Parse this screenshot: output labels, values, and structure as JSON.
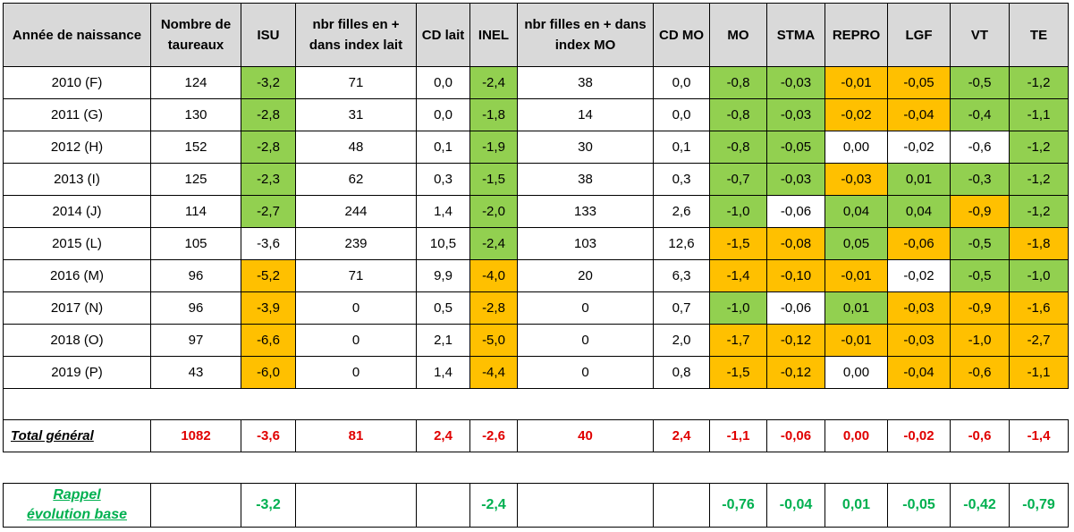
{
  "headers": [
    "Année de naissance",
    "Nombre de taureaux",
    "ISU",
    "nbr filles en + dans index lait",
    "CD lait",
    "INEL",
    "nbr filles en + dans index MO",
    "CD MO",
    "MO",
    "STMA",
    "REPRO",
    "LGF",
    "VT",
    "TE"
  ],
  "colors": {
    "green": "#92d050",
    "orange": "#ffc000",
    "header": "#d9d9d9",
    "total_red": "#e00000",
    "rappel_green": "#00b050"
  },
  "rows": [
    {
      "cells": [
        "2010 (F)",
        "124",
        "-3,2",
        "71",
        "0,0",
        "-2,4",
        "38",
        "0,0",
        "-0,8",
        "-0,03",
        "-0,01",
        "-0,05",
        "-0,5",
        "-1,2"
      ],
      "fill": [
        "",
        "",
        "g",
        "",
        "",
        "g",
        "",
        "",
        "g",
        "g",
        "o",
        "o",
        "g",
        "g"
      ]
    },
    {
      "cells": [
        "2011 (G)",
        "130",
        "-2,8",
        "31",
        "0,0",
        "-1,8",
        "14",
        "0,0",
        "-0,8",
        "-0,03",
        "-0,02",
        "-0,04",
        "-0,4",
        "-1,1"
      ],
      "fill": [
        "",
        "",
        "g",
        "",
        "",
        "g",
        "",
        "",
        "g",
        "g",
        "o",
        "o",
        "g",
        "g"
      ]
    },
    {
      "cells": [
        "2012 (H)",
        "152",
        "-2,8",
        "48",
        "0,1",
        "-1,9",
        "30",
        "0,1",
        "-0,8",
        "-0,05",
        "0,00",
        "-0,02",
        "-0,6",
        "-1,2"
      ],
      "fill": [
        "",
        "",
        "g",
        "",
        "",
        "g",
        "",
        "",
        "g",
        "g",
        "",
        "",
        "",
        "g"
      ]
    },
    {
      "cells": [
        "2013 (I)",
        "125",
        "-2,3",
        "62",
        "0,3",
        "-1,5",
        "38",
        "0,3",
        "-0,7",
        "-0,03",
        "-0,03",
        "0,01",
        "-0,3",
        "-1,2"
      ],
      "fill": [
        "",
        "",
        "g",
        "",
        "",
        "g",
        "",
        "",
        "g",
        "g",
        "o",
        "g",
        "g",
        "g"
      ]
    },
    {
      "cells": [
        "2014 (J)",
        "114",
        "-2,7",
        "244",
        "1,4",
        "-2,0",
        "133",
        "2,6",
        "-1,0",
        "-0,06",
        "0,04",
        "0,04",
        "-0,9",
        "-1,2"
      ],
      "fill": [
        "",
        "",
        "g",
        "",
        "",
        "g",
        "",
        "",
        "g",
        "",
        "g",
        "g",
        "o",
        "g"
      ]
    },
    {
      "cells": [
        "2015 (L)",
        "105",
        "-3,6",
        "239",
        "10,5",
        "-2,4",
        "103",
        "12,6",
        "-1,5",
        "-0,08",
        "0,05",
        "-0,06",
        "-0,5",
        "-1,8"
      ],
      "fill": [
        "",
        "",
        "",
        "",
        "",
        "g",
        "",
        "",
        "o",
        "o",
        "g",
        "o",
        "g",
        "o"
      ]
    },
    {
      "cells": [
        "2016 (M)",
        "96",
        "-5,2",
        "71",
        "9,9",
        "-4,0",
        "20",
        "6,3",
        "-1,4",
        "-0,10",
        "-0,01",
        "-0,02",
        "-0,5",
        "-1,0"
      ],
      "fill": [
        "",
        "",
        "o",
        "",
        "",
        "o",
        "",
        "",
        "o",
        "o",
        "o",
        "",
        "g",
        "g"
      ]
    },
    {
      "cells": [
        "2017 (N)",
        "96",
        "-3,9",
        "0",
        "0,5",
        "-2,8",
        "0",
        "0,7",
        "-1,0",
        "-0,06",
        "0,01",
        "-0,03",
        "-0,9",
        "-1,6"
      ],
      "fill": [
        "",
        "",
        "o",
        "",
        "",
        "o",
        "",
        "",
        "g",
        "",
        "g",
        "o",
        "o",
        "o"
      ]
    },
    {
      "cells": [
        "2018 (O)",
        "97",
        "-6,6",
        "0",
        "2,1",
        "-5,0",
        "0",
        "2,0",
        "-1,7",
        "-0,12",
        "-0,01",
        "-0,03",
        "-1,0",
        "-2,7"
      ],
      "fill": [
        "",
        "",
        "o",
        "",
        "",
        "o",
        "",
        "",
        "o",
        "o",
        "o",
        "o",
        "o",
        "o"
      ]
    },
    {
      "cells": [
        "2019 (P)",
        "43",
        "-6,0",
        "0",
        "1,4",
        "-4,4",
        "0",
        "0,8",
        "-1,5",
        "-0,12",
        "0,00",
        "-0,04",
        "-0,6",
        "-1,1"
      ],
      "fill": [
        "",
        "",
        "o",
        "",
        "",
        "o",
        "",
        "",
        "o",
        "o",
        "",
        "o",
        "o",
        "o"
      ]
    }
  ],
  "total": {
    "label": "Total général",
    "cells": [
      "1082",
      "-3,6",
      "81",
      "2,4",
      "-2,6",
      "40",
      "2,4",
      "-1,1",
      "-0,06",
      "0,00",
      "-0,02",
      "-0,6",
      "-1,4"
    ]
  },
  "rappel": {
    "label_line1": "Rappel",
    "label_line2": "évolution base",
    "cells": [
      "",
      "-3,2",
      "",
      "",
      "-2,4",
      "",
      "",
      "-0,76",
      "-0,04",
      "0,01",
      "-0,05",
      "-0,42",
      "-0,79"
    ]
  }
}
